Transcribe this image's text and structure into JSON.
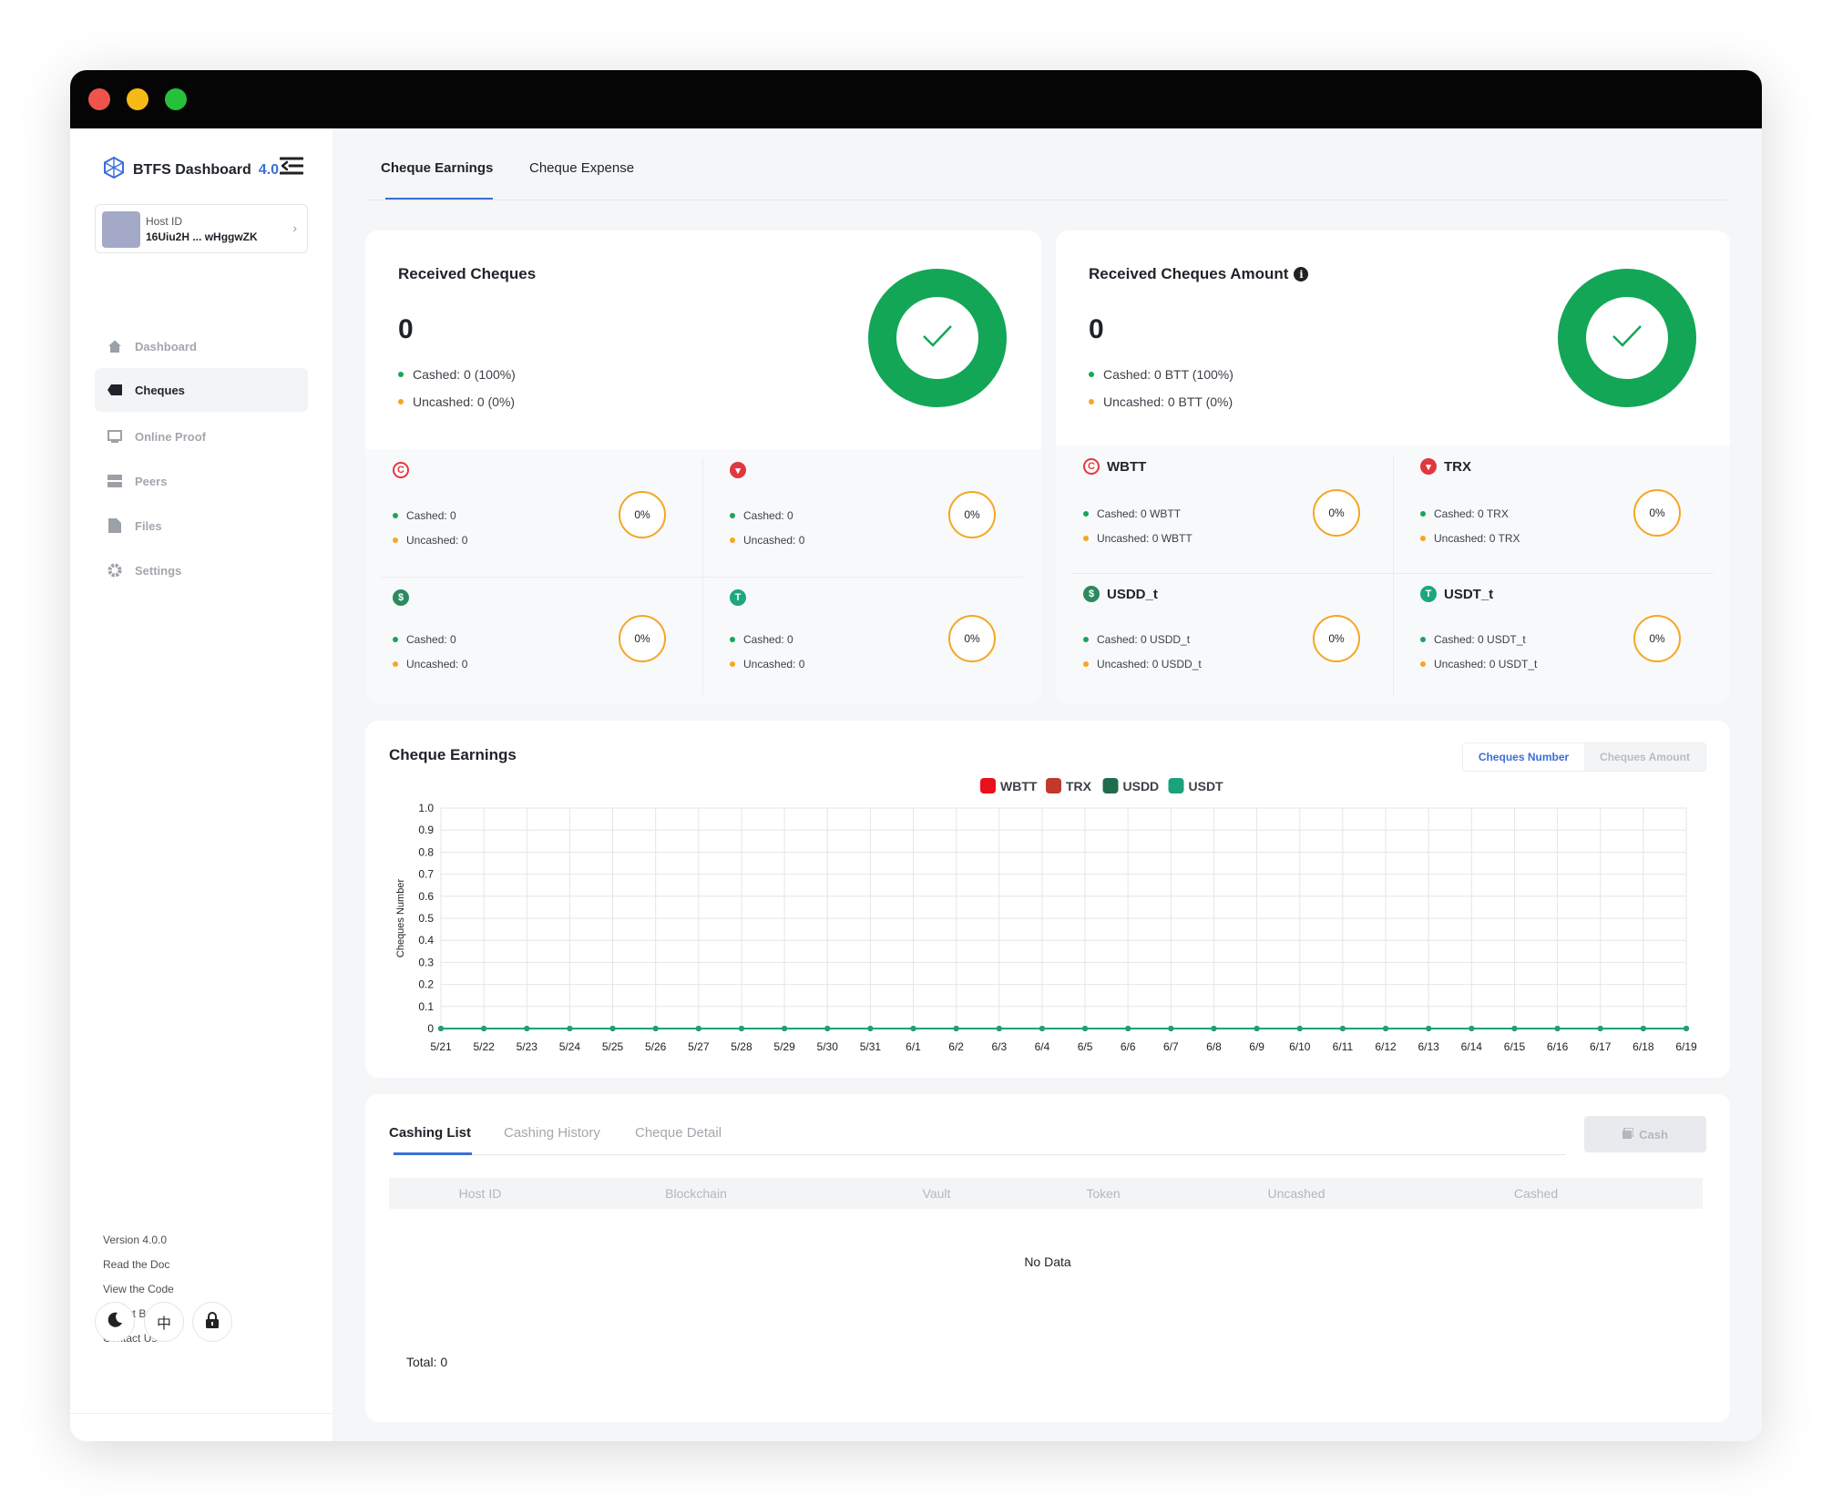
{
  "sidebar": {
    "brand_name": "BTFS Dashboard",
    "brand_version": "4.0",
    "host_label": "Host ID",
    "host_id": "16Uiu2H ... wHggwZK",
    "nav": [
      {
        "label": "Dashboard",
        "icon": "home-icon"
      },
      {
        "label": "Cheques",
        "icon": "ticket-icon"
      },
      {
        "label": "Online Proof",
        "icon": "monitor-icon"
      },
      {
        "label": "Peers",
        "icon": "server-icon"
      },
      {
        "label": "Files",
        "icon": "file-icon"
      },
      {
        "label": "Settings",
        "icon": "gear-icon"
      }
    ],
    "active_nav": "Cheques",
    "footer_links": [
      "Version 4.0.0",
      "Read the Doc",
      "View the Code",
      "Report Bugs",
      "Contact Us"
    ],
    "lang_button": "中"
  },
  "top_tabs": [
    "Cheque Earnings",
    "Cheque Expense"
  ],
  "received_cheques": {
    "title": "Received Cheques",
    "total": "0",
    "cashed": "Cashed: 0 (100%)",
    "uncashed": "Uncashed: 0 (0%)",
    "tokens": [
      {
        "name": "",
        "icon": "wbtt-icon",
        "color": "#e0383f",
        "cashed": "Cashed: 0",
        "uncashed": "Uncashed: 0",
        "percent": "0%"
      },
      {
        "name": "",
        "icon": "trx-icon",
        "color": "#e0383f",
        "cashed": "Cashed: 0",
        "uncashed": "Uncashed: 0",
        "percent": "0%"
      },
      {
        "name": "",
        "icon": "usdd-icon",
        "color": "#2c8a5e",
        "cashed": "Cashed: 0",
        "uncashed": "Uncashed: 0",
        "percent": "0%"
      },
      {
        "name": "",
        "icon": "usdt-icon",
        "color": "#1ea67e",
        "cashed": "Cashed: 0",
        "uncashed": "Uncashed: 0",
        "percent": "0%"
      }
    ]
  },
  "received_amount": {
    "title": "Received Cheques Amount",
    "total": "0",
    "cashed": "Cashed: 0 BTT (100%)",
    "uncashed": "Uncashed: 0 BTT (0%)",
    "tokens": [
      {
        "name": "WBTT",
        "icon": "wbtt-icon",
        "color": "#e0383f",
        "cashed": "Cashed: 0 WBTT",
        "uncashed": "Uncashed: 0 WBTT",
        "percent": "0%"
      },
      {
        "name": "TRX",
        "icon": "trx-icon",
        "color": "#e0383f",
        "cashed": "Cashed: 0 TRX",
        "uncashed": "Uncashed: 0 TRX",
        "percent": "0%"
      },
      {
        "name": "USDD_t",
        "icon": "usdd-icon",
        "color": "#2c8a5e",
        "cashed": "Cashed: 0 USDD_t",
        "uncashed": "Uncashed: 0 USDD_t",
        "percent": "0%"
      },
      {
        "name": "USDT_t",
        "icon": "usdt-icon",
        "color": "#1ea67e",
        "cashed": "Cashed: 0 USDT_t",
        "uncashed": "Uncashed: 0 USDT_t",
        "percent": "0%"
      }
    ]
  },
  "earnings_chart": {
    "title": "Cheque Earnings",
    "toggle": [
      "Cheques Number",
      "Cheques Amount"
    ],
    "active_toggle": "Cheques Number"
  },
  "chart_data": {
    "type": "line",
    "title": "",
    "xlabel": "",
    "ylabel": "Cheques Number",
    "ylim": [
      0,
      1
    ],
    "yticks": [
      "0",
      "0.1",
      "0.2",
      "0.3",
      "0.4",
      "0.5",
      "0.6",
      "0.7",
      "0.8",
      "0.9",
      "1.0"
    ],
    "legend_position": "top-center",
    "grid": true,
    "x": [
      "5/21",
      "5/22",
      "5/23",
      "5/24",
      "5/25",
      "5/26",
      "5/27",
      "5/28",
      "5/29",
      "5/30",
      "5/31",
      "6/1",
      "6/2",
      "6/3",
      "6/4",
      "6/5",
      "6/6",
      "6/7",
      "6/8",
      "6/9",
      "6/10",
      "6/11",
      "6/12",
      "6/13",
      "6/14",
      "6/15",
      "6/16",
      "6/17",
      "6/18",
      "6/19"
    ],
    "series": [
      {
        "name": "WBTT",
        "color": "#e8101a",
        "values": [
          0,
          0,
          0,
          0,
          0,
          0,
          0,
          0,
          0,
          0,
          0,
          0,
          0,
          0,
          0,
          0,
          0,
          0,
          0,
          0,
          0,
          0,
          0,
          0,
          0,
          0,
          0,
          0,
          0,
          0
        ]
      },
      {
        "name": "TRX",
        "color": "#c0392b",
        "values": [
          0,
          0,
          0,
          0,
          0,
          0,
          0,
          0,
          0,
          0,
          0,
          0,
          0,
          0,
          0,
          0,
          0,
          0,
          0,
          0,
          0,
          0,
          0,
          0,
          0,
          0,
          0,
          0,
          0,
          0
        ]
      },
      {
        "name": "USDD",
        "color": "#1f6b4e",
        "values": [
          0,
          0,
          0,
          0,
          0,
          0,
          0,
          0,
          0,
          0,
          0,
          0,
          0,
          0,
          0,
          0,
          0,
          0,
          0,
          0,
          0,
          0,
          0,
          0,
          0,
          0,
          0,
          0,
          0,
          0
        ]
      },
      {
        "name": "USDT",
        "color": "#1aa37a",
        "values": [
          0,
          0,
          0,
          0,
          0,
          0,
          0,
          0,
          0,
          0,
          0,
          0,
          0,
          0,
          0,
          0,
          0,
          0,
          0,
          0,
          0,
          0,
          0,
          0,
          0,
          0,
          0,
          0,
          0,
          0
        ]
      }
    ]
  },
  "cashing": {
    "tabs": [
      "Cashing List",
      "Cashing History",
      "Cheque Detail"
    ],
    "active_tab": "Cashing List",
    "cash_button": "Cash",
    "columns": [
      "Host ID",
      "Blockchain",
      "Vault",
      "Token",
      "Uncashed",
      "Cashed"
    ],
    "empty_text": "No Data",
    "total": "Total: 0"
  },
  "colors": {
    "accent": "#3b6fd8",
    "success": "#13a657",
    "warning": "#f5a623"
  }
}
